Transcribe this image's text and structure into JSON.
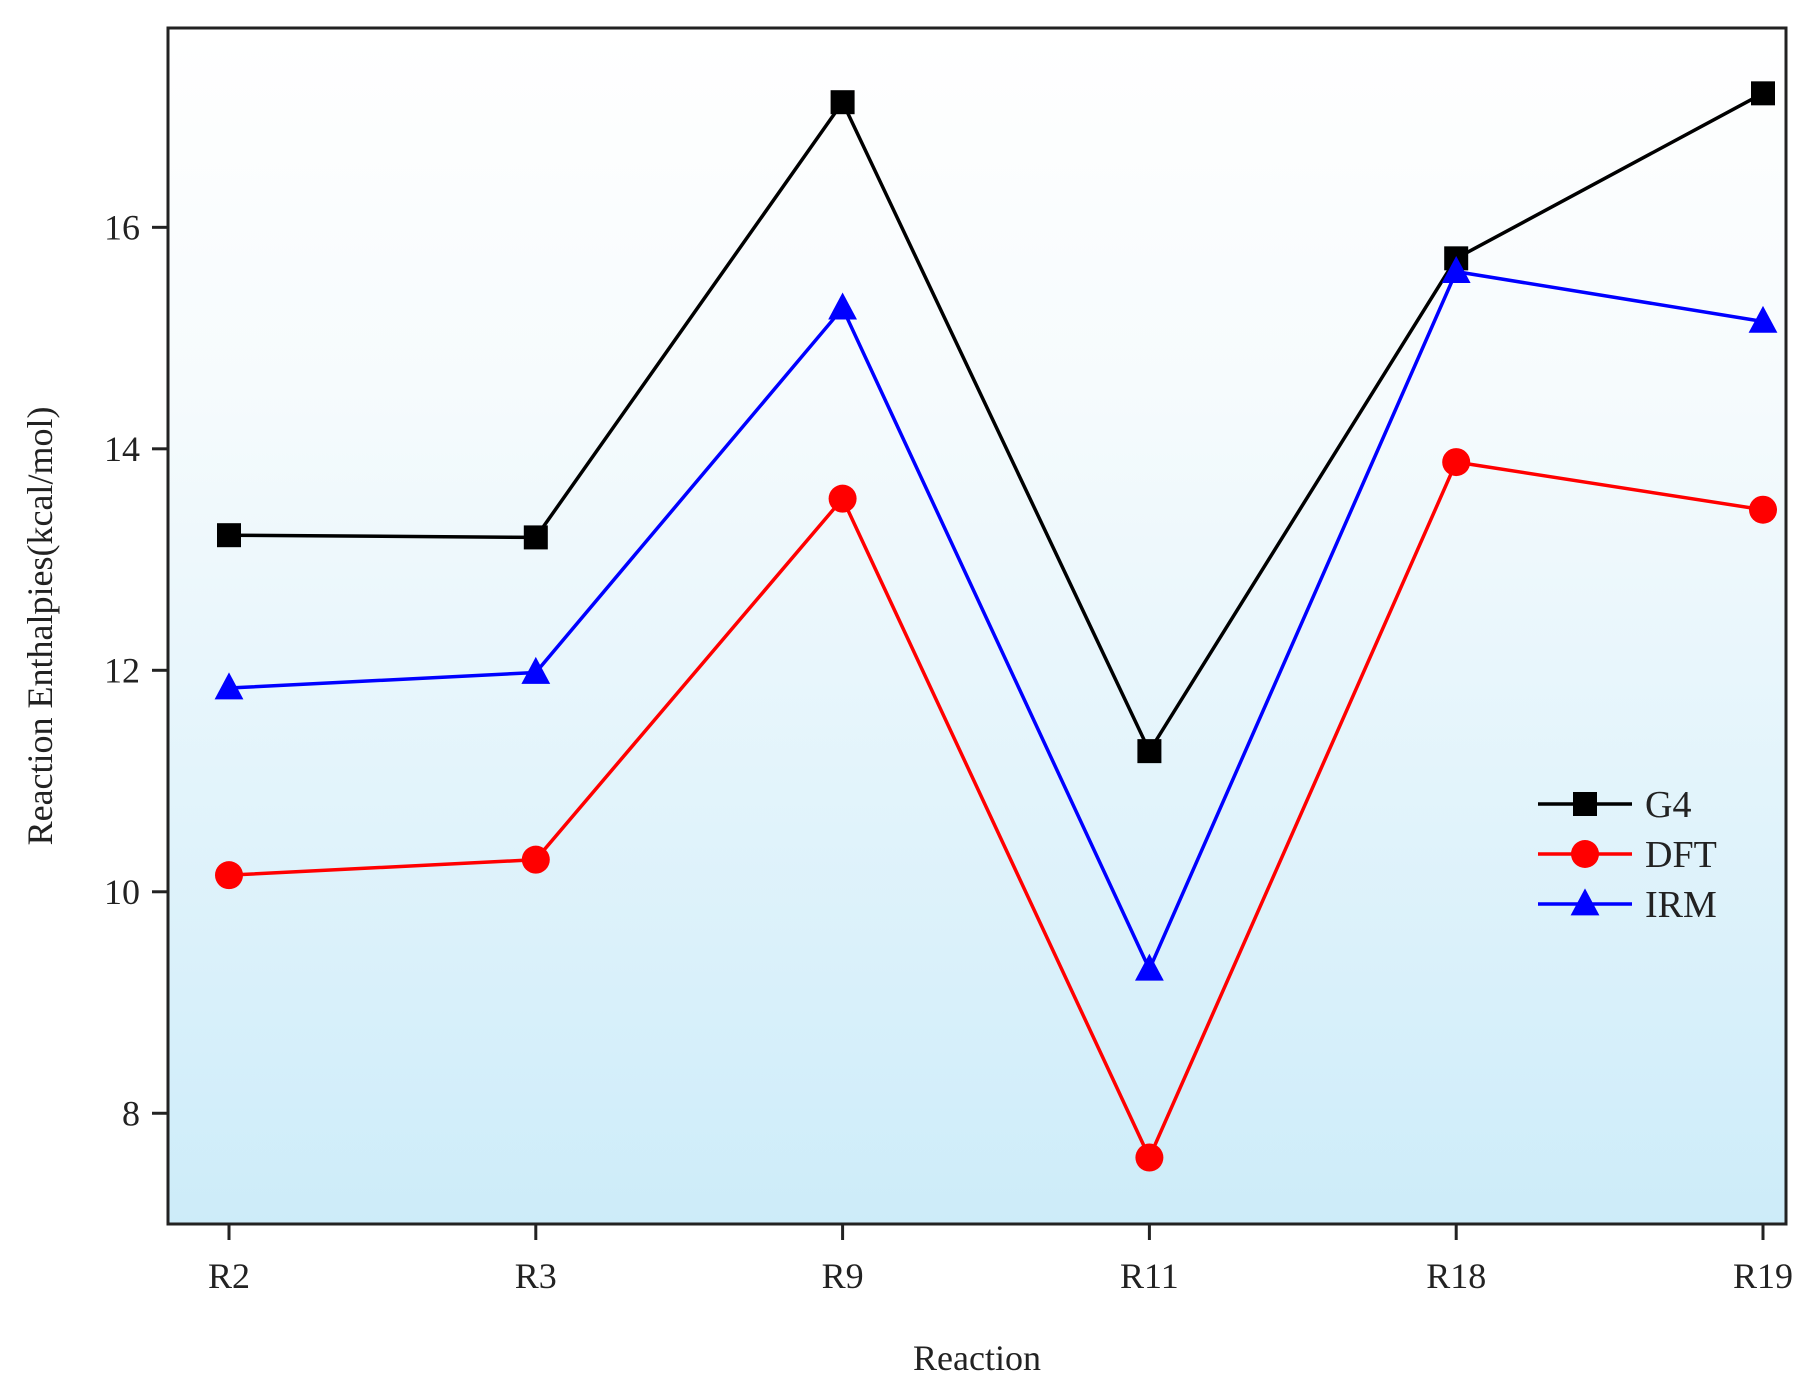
{
  "chart_data": {
    "type": "line",
    "title": "",
    "xlabel": "Reaction",
    "ylabel": "Reaction Enthalpies(kcal/mol)",
    "categories": [
      "R2",
      "R3",
      "R9",
      "R11",
      "R18",
      "R19"
    ],
    "yticks": [
      8,
      10,
      12,
      14,
      16
    ],
    "ylim": [
      7.0,
      17.8
    ],
    "grid": false,
    "legend_position": "right",
    "series": [
      {
        "name": "G4",
        "color": "#000000",
        "marker": "square",
        "values": [
          13.22,
          13.2,
          17.13,
          11.27,
          15.72,
          17.21
        ]
      },
      {
        "name": "DFT",
        "color": "#ff0000",
        "marker": "circle",
        "values": [
          10.15,
          10.29,
          13.55,
          7.6,
          13.88,
          13.45
        ]
      },
      {
        "name": "IRM",
        "color": "#0000ff",
        "marker": "triangle",
        "values": [
          11.84,
          11.98,
          15.27,
          9.3,
          15.6,
          15.15
        ]
      }
    ]
  }
}
